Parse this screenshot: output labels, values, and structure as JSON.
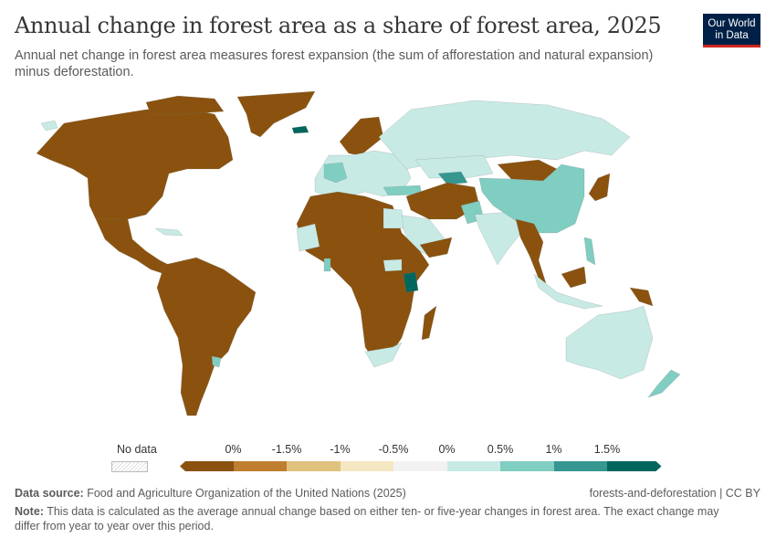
{
  "header": {
    "title": "Annual change in forest area as a share of forest area, 2025",
    "subtitle": "Annual net change in forest area measures forest expansion (the sum of afforestation and natural expansion) minus deforestation.",
    "logo_line1": "Our World",
    "logo_line2": "in Data"
  },
  "legend": {
    "no_data_label": "No data",
    "ticks": [
      "0%",
      "-1.5%",
      "-1%",
      "-0.5%",
      "0%",
      "0.5%",
      "1%",
      "1.5%"
    ],
    "bins": [
      {
        "color": "#8a520e"
      },
      {
        "color": "#bf7e30"
      },
      {
        "color": "#dfc27e"
      },
      {
        "color": "#f5e7c2"
      },
      {
        "color": "#f2f2f2"
      },
      {
        "color": "#c7eae5"
      },
      {
        "color": "#80cdc1"
      },
      {
        "color": "#35978f"
      },
      {
        "color": "#01665e"
      }
    ]
  },
  "footer": {
    "source_label": "Data source:",
    "source_text": "Food and Agriculture Organization of the United Nations (2025)",
    "right_text": "forests-and-deforestation | CC BY",
    "note_label": "Note:",
    "note_text": "This data is calculated as the average annual change based on either ten- or five-year changes in forest area. The exact change may differ from year to year over this period."
  },
  "chart_data": {
    "type": "choropleth-map",
    "title": "Annual change in forest area as a share of forest area, 2025",
    "subtitle": "Annual net change in forest area measures forest expansion (the sum of afforestation and natural expansion) minus deforestation.",
    "legend_bins": [
      {
        "range": "< -2%",
        "color": "#8a520e"
      },
      {
        "range": "-2% to -1.5%",
        "color": "#bf7e30"
      },
      {
        "range": "-1.5% to -1%",
        "color": "#dfc27e"
      },
      {
        "range": "-1% to -0.5%",
        "color": "#f5e7c2"
      },
      {
        "range": "-0.5% to 0%",
        "color": "#f2f2f2"
      },
      {
        "range": "0% to 0.5%",
        "color": "#c7eae5"
      },
      {
        "range": "0.5% to 1%",
        "color": "#80cdc1"
      },
      {
        "range": "1% to 1.5%",
        "color": "#35978f"
      },
      {
        "range": "> 1.5%",
        "color": "#01665e"
      }
    ],
    "regions": [
      {
        "name": "North America",
        "bin": "< -2%"
      },
      {
        "name": "Greenland",
        "bin": "< -2%"
      },
      {
        "name": "Central America",
        "bin": "< -2%"
      },
      {
        "name": "South America",
        "bin": "< -2%"
      },
      {
        "name": "Uruguay",
        "bin": "0.5% to 1%"
      },
      {
        "name": "Iceland",
        "bin": "> 1.5%"
      },
      {
        "name": "Scandinavia",
        "bin": "< -2%"
      },
      {
        "name": "Europe",
        "bin": "0% to 0.5%"
      },
      {
        "name": "France",
        "bin": "0.5% to 1%"
      },
      {
        "name": "Russia",
        "bin": "0% to 0.5%"
      },
      {
        "name": "China",
        "bin": "0.5% to 1%"
      },
      {
        "name": "Mongolia",
        "bin": "< -2%"
      },
      {
        "name": "India",
        "bin": "0% to 0.5%"
      },
      {
        "name": "Middle East / Central Asia",
        "bin": "< -2%"
      },
      {
        "name": "Uzbekistan",
        "bin": "1% to 1.5%"
      },
      {
        "name": "Turkey",
        "bin": "0.5% to 1%"
      },
      {
        "name": "Africa (most)",
        "bin": "< -2%"
      },
      {
        "name": "Kenya",
        "bin": "> 1.5%"
      },
      {
        "name": "South Africa",
        "bin": "0% to 0.5%"
      },
      {
        "name": "Southeast Asia mainland",
        "bin": "< -2%"
      },
      {
        "name": "Japan",
        "bin": "< -2%"
      },
      {
        "name": "Australia",
        "bin": "0% to 0.5%"
      },
      {
        "name": "New Zealand",
        "bin": "0.5% to 1%"
      },
      {
        "name": "Papua New Guinea",
        "bin": "< -2%"
      }
    ]
  }
}
